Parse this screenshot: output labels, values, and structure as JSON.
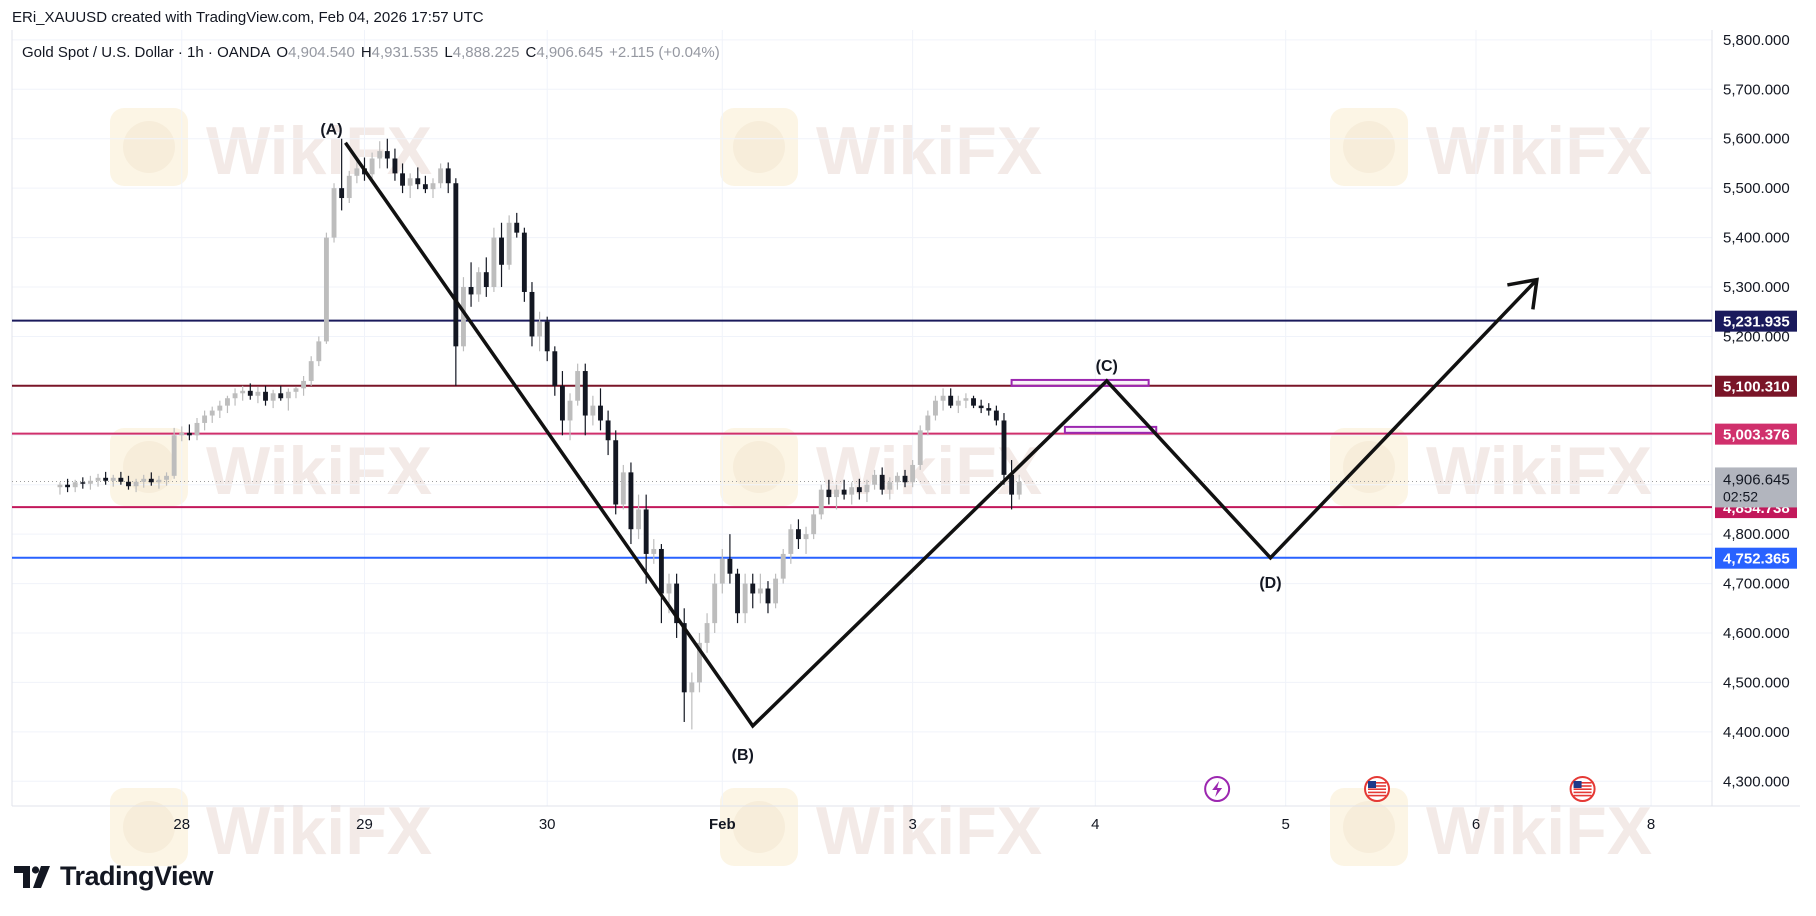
{
  "caption": "ERi_XAUUSD created with TradingView.com, Feb 04, 2026 17:57 UTC",
  "legend": {
    "symbol": "Gold Spot / U.S. Dollar · 1h · OANDA",
    "o_label": "O",
    "o": "4,904.540",
    "h_label": "H",
    "h": "4,931.535",
    "l_label": "L",
    "l": "4,888.225",
    "c_label": "C",
    "c": "4,906.645",
    "change": "+2.115 (+0.04%)"
  },
  "brand": "TradingView",
  "watermark": "WikiFX",
  "colors": {
    "navy": "#1a1a5c",
    "maroon": "#7a1528",
    "pink": "#d0306c",
    "crimson": "#c2185b",
    "blue": "#2962ff",
    "purple": "#9c27b0",
    "candle_up": "#bdbdbd",
    "candle_down": "#131722"
  },
  "chart_data": {
    "type": "candlestick",
    "timeframe": "1h",
    "y_axis": {
      "min": 4250,
      "max": 5820,
      "ticks": [
        4300000,
        4400000,
        4500000,
        4600000,
        4700000,
        4800000,
        4900000,
        5000000,
        5100000,
        5200000,
        5300000,
        5400000,
        5500000,
        5600000,
        5700000,
        5800000
      ],
      "tick_labels": [
        "4,300.000",
        "4,400.000",
        "4,500.000",
        "4,600.000",
        "4,700.000",
        "4,800.000",
        "4,900.000",
        "5,000.000",
        "5,100.000",
        "5,200.000",
        "5,300.000",
        "5,400.000",
        "5,500.000",
        "5,600.000",
        "5,700.000",
        "5,800.000"
      ]
    },
    "x_axis": {
      "ticks": [
        {
          "label": "28",
          "bar": 16
        },
        {
          "label": "29",
          "bar": 40
        },
        {
          "label": "30",
          "bar": 64
        },
        {
          "label": "Feb",
          "bar": 87
        },
        {
          "label": "3",
          "bar": 112
        },
        {
          "label": "4",
          "bar": 136
        },
        {
          "label": "5",
          "bar": 161
        },
        {
          "label": "6",
          "bar": 186
        },
        {
          "label": "8",
          "bar": 209
        }
      ],
      "bar_range": [
        -6.3,
        217
      ]
    },
    "candles": [
      [
        4895,
        4905,
        4880,
        4900
      ],
      [
        4900,
        4912,
        4885,
        4895
      ],
      [
        4895,
        4910,
        4885,
        4905
      ],
      [
        4905,
        4915,
        4892,
        4902
      ],
      [
        4902,
        4918,
        4890,
        4908
      ],
      [
        4908,
        4922,
        4896,
        4914
      ],
      [
        4914,
        4926,
        4900,
        4908
      ],
      [
        4908,
        4920,
        4896,
        4914
      ],
      [
        4914,
        4926,
        4900,
        4906
      ],
      [
        4906,
        4918,
        4890,
        4897
      ],
      [
        4897,
        4912,
        4885,
        4906
      ],
      [
        4906,
        4920,
        4894,
        4912
      ],
      [
        4912,
        4925,
        4898,
        4905
      ],
      [
        4905,
        4918,
        4892,
        4910
      ],
      [
        4910,
        4925,
        4898,
        4918
      ],
      [
        4918,
        5015,
        4912,
        5000
      ],
      [
        5000,
        5018,
        4988,
        5005
      ],
      [
        5005,
        5022,
        4990,
        5000
      ],
      [
        5000,
        5035,
        4990,
        5025
      ],
      [
        5025,
        5050,
        5010,
        5040
      ],
      [
        5040,
        5058,
        5025,
        5050
      ],
      [
        5050,
        5070,
        5035,
        5060
      ],
      [
        5060,
        5080,
        5045,
        5075
      ],
      [
        5075,
        5095,
        5060,
        5085
      ],
      [
        5085,
        5100,
        5070,
        5090
      ],
      [
        5090,
        5105,
        5072,
        5080
      ],
      [
        5080,
        5098,
        5065,
        5088
      ],
      [
        5088,
        5100,
        5060,
        5070
      ],
      [
        5070,
        5092,
        5055,
        5085
      ],
      [
        5085,
        5100,
        5070,
        5075
      ],
      [
        5075,
        5095,
        5050,
        5088
      ],
      [
        5088,
        5098,
        5075,
        5095
      ],
      [
        5095,
        5120,
        5080,
        5110
      ],
      [
        5110,
        5160,
        5100,
        5150
      ],
      [
        5150,
        5200,
        5140,
        5190
      ],
      [
        5190,
        5410,
        5185,
        5400
      ],
      [
        5400,
        5510,
        5390,
        5500
      ],
      [
        5500,
        5600,
        5455,
        5480
      ],
      [
        5480,
        5535,
        5470,
        5525
      ],
      [
        5525,
        5555,
        5510,
        5540
      ],
      [
        5540,
        5562,
        5515,
        5528
      ],
      [
        5528,
        5572,
        5520,
        5560
      ],
      [
        5560,
        5595,
        5540,
        5575
      ],
      [
        5575,
        5600,
        5540,
        5560
      ],
      [
        5560,
        5580,
        5515,
        5530
      ],
      [
        5530,
        5550,
        5490,
        5505
      ],
      [
        5505,
        5530,
        5480,
        5520
      ],
      [
        5520,
        5542,
        5498,
        5508
      ],
      [
        5508,
        5525,
        5490,
        5498
      ],
      [
        5498,
        5520,
        5480,
        5510
      ],
      [
        5510,
        5550,
        5500,
        5540
      ],
      [
        5540,
        5552,
        5490,
        5510
      ],
      [
        5510,
        5520,
        5100,
        5180
      ],
      [
        5180,
        5320,
        5170,
        5300
      ],
      [
        5300,
        5350,
        5260,
        5285
      ],
      [
        5285,
        5340,
        5270,
        5330
      ],
      [
        5330,
        5360,
        5280,
        5300
      ],
      [
        5300,
        5420,
        5290,
        5400
      ],
      [
        5400,
        5430,
        5300,
        5345
      ],
      [
        5345,
        5445,
        5335,
        5430
      ],
      [
        5430,
        5450,
        5400,
        5410
      ],
      [
        5410,
        5420,
        5270,
        5290
      ],
      [
        5290,
        5310,
        5180,
        5200
      ],
      [
        5200,
        5250,
        5170,
        5230
      ],
      [
        5230,
        5240,
        5150,
        5170
      ],
      [
        5170,
        5180,
        5080,
        5100
      ],
      [
        5100,
        5130,
        5000,
        5030
      ],
      [
        5030,
        5085,
        4990,
        5070
      ],
      [
        5070,
        5145,
        5060,
        5130
      ],
      [
        5130,
        5145,
        5000,
        5040
      ],
      [
        5040,
        5080,
        5020,
        5060
      ],
      [
        5060,
        5095,
        5010,
        5030
      ],
      [
        5030,
        5050,
        4960,
        4990
      ],
      [
        4990,
        5010,
        4840,
        4860
      ],
      [
        4860,
        4940,
        4850,
        4925
      ],
      [
        4925,
        4945,
        4780,
        4810
      ],
      [
        4810,
        4880,
        4790,
        4850
      ],
      [
        4850,
        4880,
        4700,
        4760
      ],
      [
        4760,
        4790,
        4740,
        4770
      ],
      [
        4770,
        4780,
        4620,
        4680
      ],
      [
        4680,
        4720,
        4640,
        4700
      ],
      [
        4700,
        4720,
        4590,
        4620
      ],
      [
        4620,
        4650,
        4420,
        4480
      ],
      [
        4480,
        4520,
        4405,
        4500
      ],
      [
        4500,
        4600,
        4480,
        4580
      ],
      [
        4580,
        4640,
        4560,
        4620
      ],
      [
        4620,
        4720,
        4600,
        4700
      ],
      [
        4700,
        4770,
        4680,
        4750
      ],
      [
        4750,
        4800,
        4700,
        4720
      ],
      [
        4720,
        4730,
        4620,
        4640
      ],
      [
        4640,
        4720,
        4620,
        4700
      ],
      [
        4700,
        4720,
        4650,
        4680
      ],
      [
        4680,
        4720,
        4660,
        4690
      ],
      [
        4690,
        4705,
        4640,
        4660
      ],
      [
        4660,
        4720,
        4650,
        4710
      ],
      [
        4710,
        4770,
        4700,
        4760
      ],
      [
        4760,
        4820,
        4740,
        4810
      ],
      [
        4810,
        4830,
        4770,
        4790
      ],
      [
        4790,
        4815,
        4760,
        4800
      ],
      [
        4800,
        4850,
        4790,
        4840
      ],
      [
        4840,
        4900,
        4830,
        4890
      ],
      [
        4890,
        4910,
        4860,
        4875
      ],
      [
        4875,
        4900,
        4850,
        4890
      ],
      [
        4890,
        4910,
        4870,
        4880
      ],
      [
        4880,
        4905,
        4860,
        4895
      ],
      [
        4895,
        4912,
        4870,
        4885
      ],
      [
        4885,
        4910,
        4865,
        4900
      ],
      [
        4900,
        4930,
        4890,
        4920
      ],
      [
        4920,
        4935,
        4880,
        4890
      ],
      [
        4890,
        4915,
        4870,
        4905
      ],
      [
        4905,
        4925,
        4890,
        4918
      ],
      [
        4918,
        4930,
        4895,
        4905
      ],
      [
        4905,
        4950,
        4895,
        4940
      ],
      [
        4940,
        5020,
        4930,
        5010
      ],
      [
        5010,
        5050,
        5000,
        5040
      ],
      [
        5040,
        5080,
        5030,
        5070
      ],
      [
        5070,
        5095,
        5050,
        5080
      ],
      [
        5080,
        5095,
        5055,
        5060
      ],
      [
        5060,
        5080,
        5045,
        5070
      ],
      [
        5070,
        5085,
        5055,
        5075
      ],
      [
        5075,
        5080,
        5055,
        5060
      ],
      [
        5060,
        5072,
        5045,
        5055
      ],
      [
        5055,
        5065,
        5040,
        5050
      ],
      [
        5050,
        5060,
        5020,
        5030
      ],
      [
        5030,
        5045,
        4900,
        4920
      ],
      [
        4920,
        4950,
        4850,
        4880
      ],
      [
        4880,
        4920,
        4870,
        4906
      ]
    ],
    "horizontal_levels": [
      {
        "price": 5231.935,
        "label": "5,231.935",
        "color": "#1a1a5c"
      },
      {
        "price": 5100.31,
        "label": "5,100.310",
        "color": "#7a1528"
      },
      {
        "price": 5003.376,
        "label": "5,003.376",
        "color": "#d0306c"
      },
      {
        "price": 4854.738,
        "label": "4,854.738",
        "color": "#c2185b"
      },
      {
        "price": 4752.365,
        "label": "4,752.365",
        "color": "#2962ff"
      }
    ],
    "current_price": {
      "price": 4906.645,
      "label": "4,906.645",
      "countdown": "02:52"
    },
    "pattern": {
      "points": [
        {
          "label": "(A)",
          "bar": 37.5,
          "price": 5592
        },
        {
          "label": "(B)",
          "bar": 91,
          "price": 4412
        },
        {
          "label": "(C)",
          "bar": 137.5,
          "price": 5110
        },
        {
          "label": "(D)",
          "bar": 159,
          "price": 4752
        },
        {
          "label": "",
          "bar": 194,
          "price": 5315
        }
      ]
    },
    "zones": [
      {
        "bar_start": 125,
        "bar_end": 143,
        "top": 5112,
        "bottom": 5100
      },
      {
        "bar_start": 132,
        "bar_end": 144,
        "top": 5017,
        "bottom": 5005
      }
    ],
    "event_icons": [
      {
        "type": "flash",
        "bar": 152
      },
      {
        "type": "us-flag",
        "bar": 173
      },
      {
        "type": "us-flag",
        "bar": 200
      }
    ]
  }
}
